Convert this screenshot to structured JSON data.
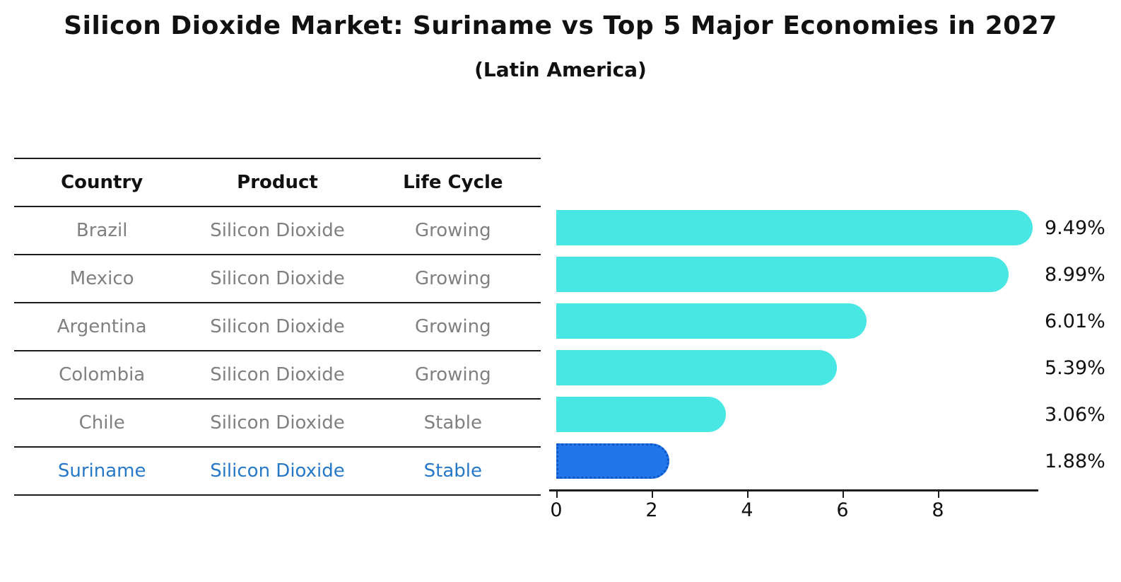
{
  "title": "Silicon Dioxide Market: Suriname vs Top 5 Major Economies in 2027",
  "subtitle": "(Latin America)",
  "table": {
    "headers": [
      "Country",
      "Product",
      "Life Cycle"
    ],
    "rows": [
      {
        "country": "Brazil",
        "product": "Silicon Dioxide",
        "life_cycle": "Growing",
        "highlight": false
      },
      {
        "country": "Mexico",
        "product": "Silicon Dioxide",
        "life_cycle": "Growing",
        "highlight": false
      },
      {
        "country": "Argentina",
        "product": "Silicon Dioxide",
        "life_cycle": "Growing",
        "highlight": false
      },
      {
        "country": "Colombia",
        "product": "Silicon Dioxide",
        "life_cycle": "Growing",
        "highlight": false
      },
      {
        "country": "Chile",
        "product": "Silicon Dioxide",
        "life_cycle": "Stable",
        "highlight": false
      },
      {
        "country": "Suriname",
        "product": "Silicon Dioxide",
        "life_cycle": "Stable",
        "highlight": true
      }
    ]
  },
  "chart_data": {
    "type": "bar",
    "orientation": "horizontal",
    "title": "Silicon Dioxide Market: Suriname vs Top 5 Major Economies in 2027",
    "subtitle": "(Latin America)",
    "categories": [
      "Brazil",
      "Mexico",
      "Argentina",
      "Colombia",
      "Chile",
      "Suriname"
    ],
    "values": [
      9.49,
      8.99,
      6.01,
      5.39,
      3.06,
      1.88
    ],
    "value_labels": [
      "9.49%",
      "8.99%",
      "6.01%",
      "5.39%",
      "3.06%",
      "1.88%"
    ],
    "x_ticks": [
      0,
      2,
      4,
      6,
      8
    ],
    "xlim": [
      0,
      10
    ],
    "xlabel": "",
    "ylabel": "",
    "grid": false,
    "legend": false,
    "bar_color": "#48e7e4",
    "highlight_index": 5,
    "highlight_bar_color": "#2277e8",
    "highlight_border_color": "#0d56c8",
    "highlight_text_color": "#2878c8"
  },
  "colors": {
    "text": "#111111",
    "muted_text": "#808080",
    "table_line": "#1c1c1c"
  }
}
